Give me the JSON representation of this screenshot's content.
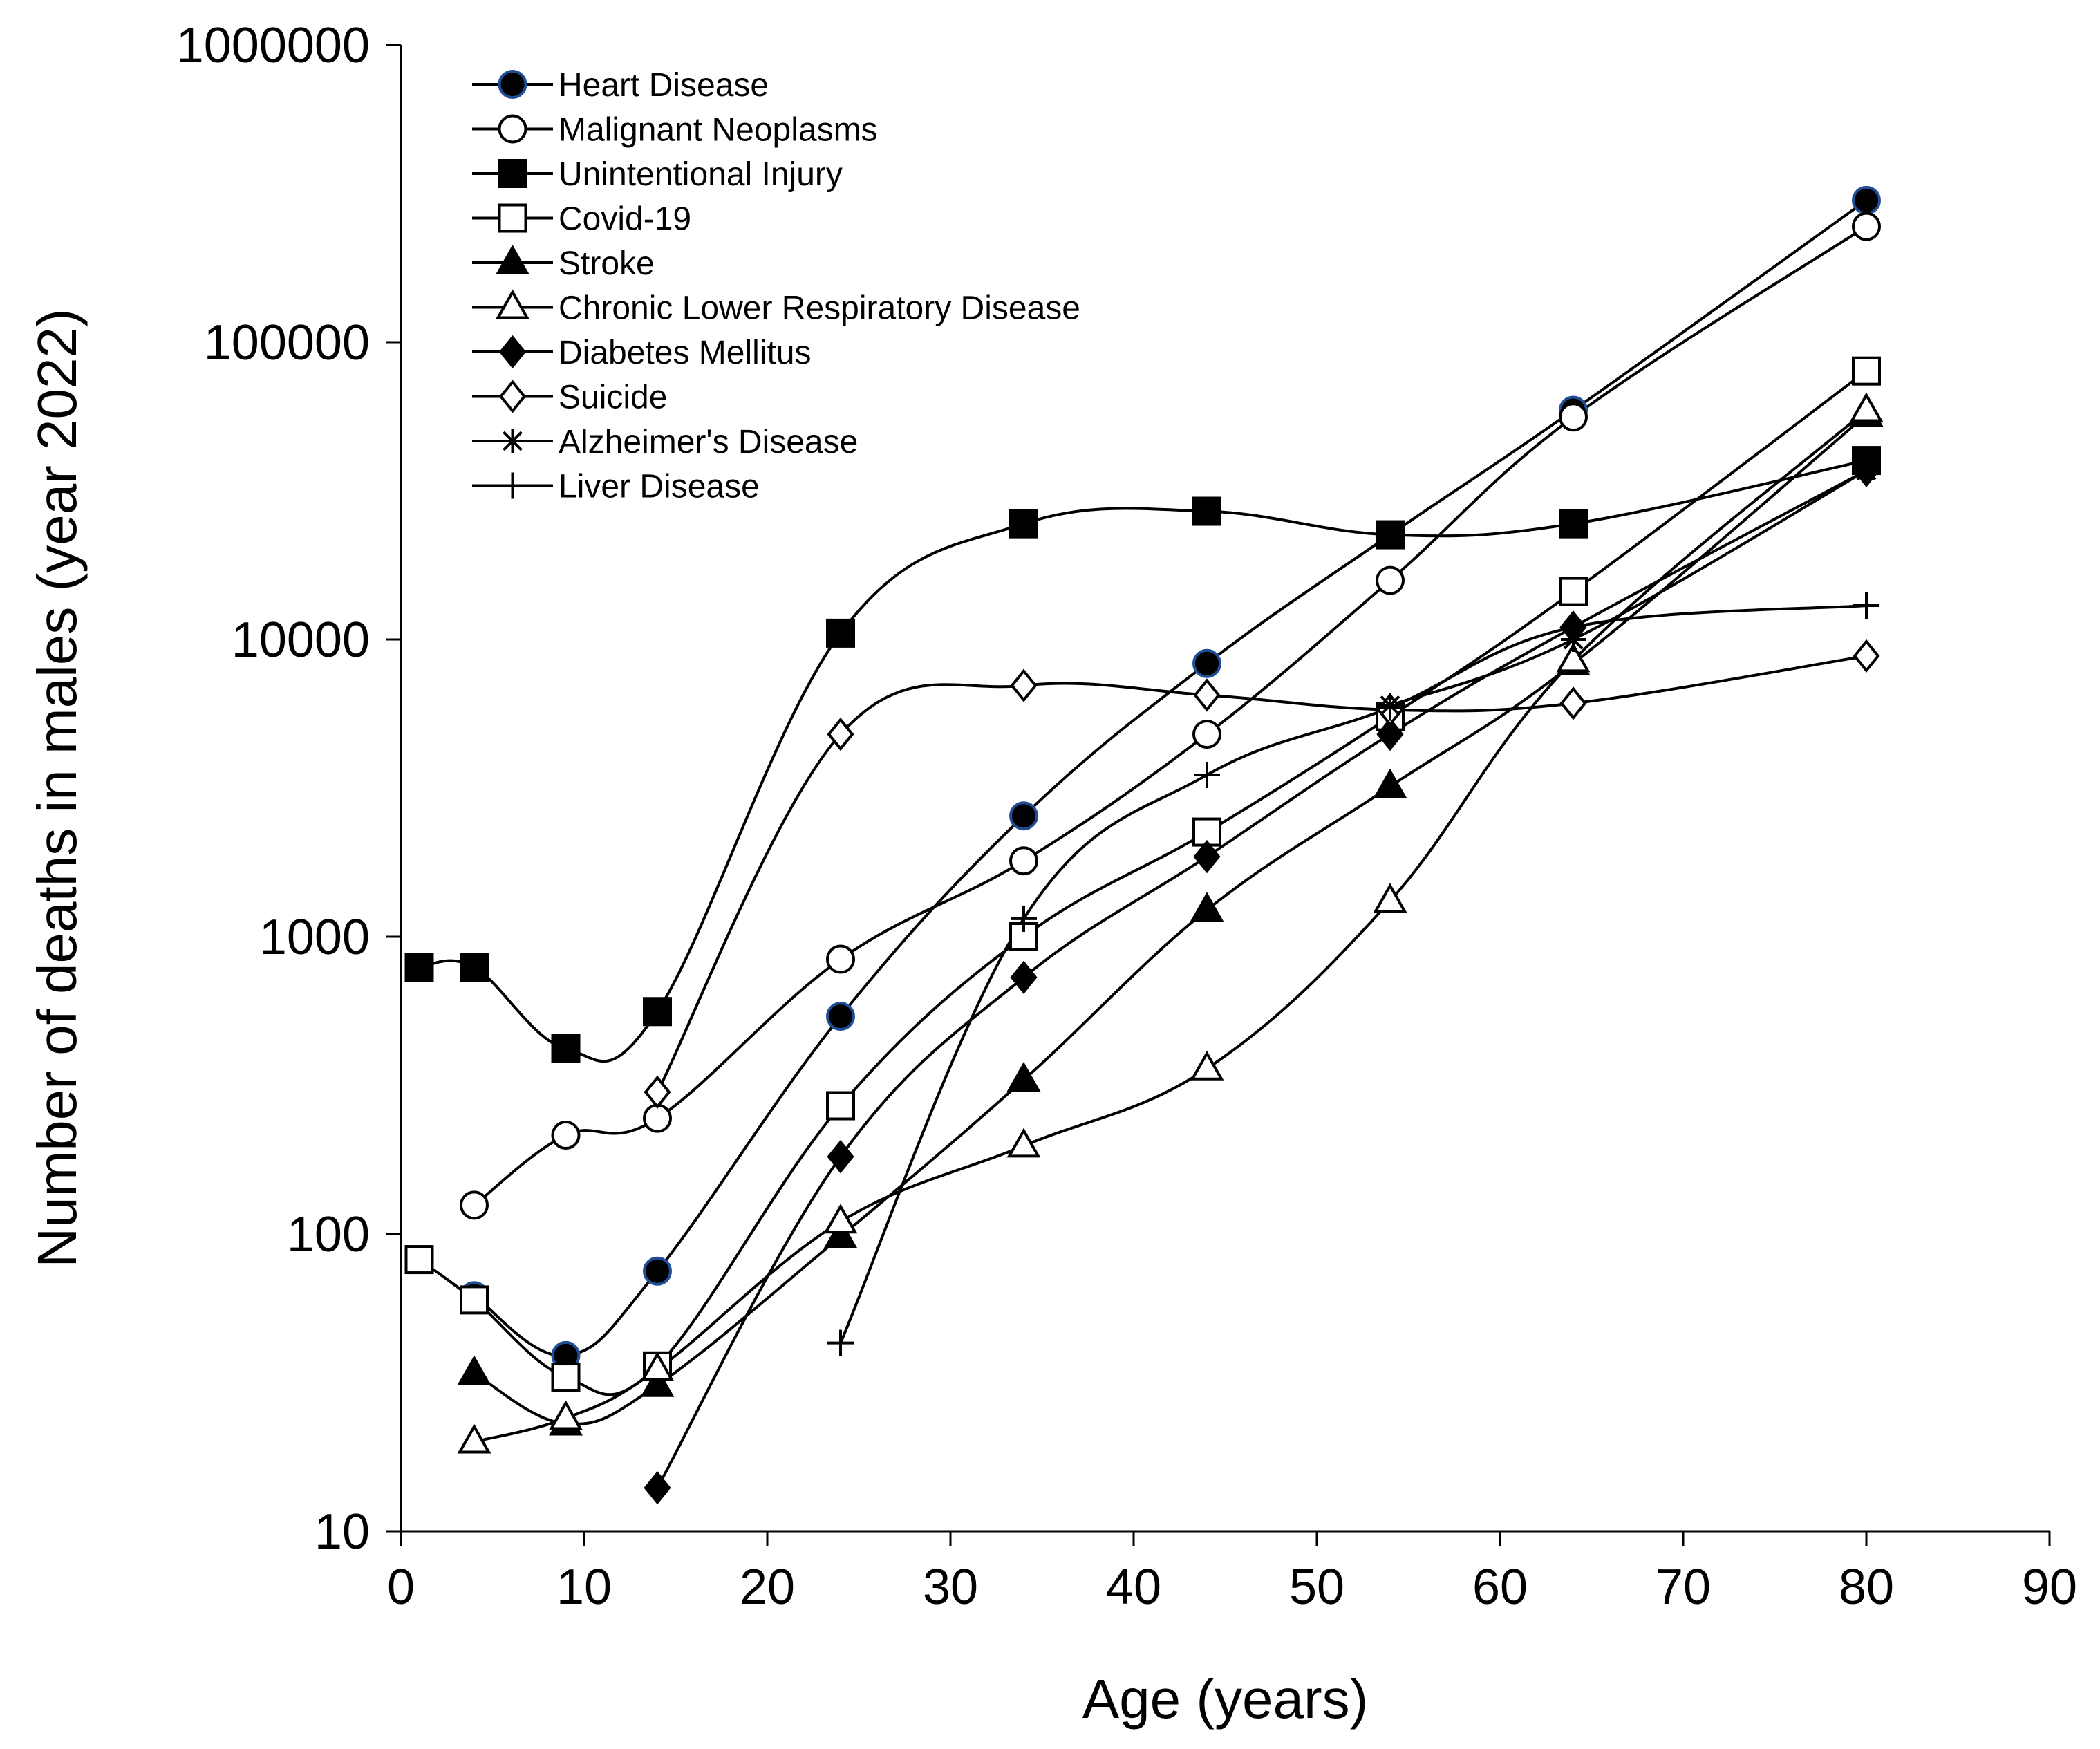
{
  "chart_data": {
    "type": "line",
    "xlabel": "Age (years)",
    "ylabel": "Number of deaths in males (year 2022)",
    "xlim": [
      0,
      90
    ],
    "ylim": [
      10,
      1000000
    ],
    "yscale": "log",
    "x_ticks": [
      "0",
      "10",
      "20",
      "30",
      "40",
      "50",
      "60",
      "70",
      "80",
      "90"
    ],
    "y_ticks": [
      "10",
      "100",
      "1000",
      "10000",
      "100000",
      "1000000"
    ],
    "legend_position": "top-left",
    "series": [
      {
        "name": "Heart Disease",
        "marker": "circle-filled",
        "x": [
          4,
          9,
          14,
          24,
          34,
          44,
          54,
          64,
          80
        ],
        "y": [
          62,
          39,
          75,
          540,
          2550,
          8300,
          22500,
          59000,
          300000
        ]
      },
      {
        "name": "Malignant Neoplasms",
        "marker": "circle-open",
        "x": [
          4,
          9,
          14,
          24,
          34,
          44,
          54,
          64,
          80
        ],
        "y": [
          125,
          215,
          245,
          840,
          1800,
          4800,
          15800,
          56000,
          245000
        ]
      },
      {
        "name": "Unintentional Injury",
        "marker": "square-filled",
        "x": [
          1,
          4,
          9,
          14,
          24,
          34,
          44,
          54,
          64,
          80
        ],
        "y": [
          790,
          790,
          420,
          560,
          10500,
          24500,
          27000,
          22500,
          24500,
          40000
        ]
      },
      {
        "name": "Covid-19",
        "marker": "square-open",
        "x": [
          1,
          4,
          9,
          14,
          24,
          34,
          44,
          54,
          64,
          80
        ],
        "y": [
          82,
          60,
          33,
          36,
          270,
          1000,
          2250,
          5500,
          14500,
          80000
        ]
      },
      {
        "name": "Stroke",
        "marker": "triangle-filled",
        "x": [
          4,
          9,
          14,
          24,
          34,
          44,
          54,
          64,
          80
        ],
        "y": [
          34,
          23,
          31,
          98,
          330,
          1230,
          3200,
          8300,
          57000
        ]
      },
      {
        "name": "Chronic Lower Respiratory Disease",
        "marker": "triangle-open",
        "x": [
          4,
          9,
          14,
          24,
          34,
          44,
          54,
          64,
          80
        ],
        "y": [
          20,
          24,
          35,
          110,
          198,
          360,
          1320,
          8500,
          59000
        ]
      },
      {
        "name": "Diabetes Mellitus",
        "marker": "diamond-filled",
        "x": [
          14,
          24,
          34,
          44,
          54,
          64,
          80
        ],
        "y": [
          14,
          182,
          730,
          1860,
          4800,
          11000,
          37000
        ]
      },
      {
        "name": "Suicide",
        "marker": "diamond-open",
        "x": [
          14,
          24,
          34,
          44,
          54,
          64,
          80
        ],
        "y": [
          300,
          4800,
          7000,
          6500,
          5800,
          6100,
          8800
        ]
      },
      {
        "name": "Alzheimer's Disease",
        "marker": "asterisk",
        "x": [
          54,
          64,
          80
        ],
        "y": [
          6000,
          10000,
          37000
        ]
      },
      {
        "name": "Liver Disease",
        "marker": "plus",
        "x": [
          24,
          34,
          44,
          54,
          64,
          80
        ],
        "y": [
          43,
          1150,
          3500,
          5900,
          11000,
          13000
        ]
      }
    ]
  }
}
